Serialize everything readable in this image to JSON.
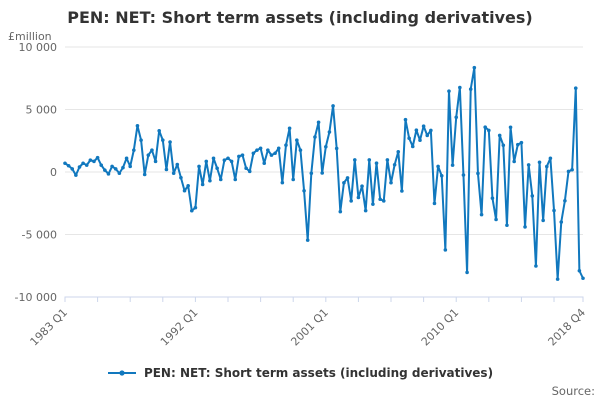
{
  "title": "PEN: NET: Short term assets (including derivatives)",
  "y_axis": {
    "unit_label": "£million",
    "min": -10000,
    "max": 10000,
    "ticks": [
      10000,
      5000,
      0,
      -5000,
      -10000
    ],
    "tick_labels": [
      "10 000",
      "5 000",
      "0",
      "-5 000",
      "-10 000"
    ]
  },
  "x_axis": {
    "labeled_ticks": [
      {
        "label": "1983 Q1",
        "index": 0
      },
      {
        "label": "1992 Q1",
        "index": 36
      },
      {
        "label": "2001 Q1",
        "index": 72
      },
      {
        "label": "2010 Q1",
        "index": 108
      },
      {
        "label": "2018 Q4",
        "index": 143
      }
    ],
    "tick_every": 9
  },
  "legend": {
    "label": "PEN: NET: Short term assets (including derivatives)"
  },
  "source_label": "Source:",
  "colors": {
    "series": "#1178be",
    "grid": "#e6e6e6",
    "axis": "#ccd6eb",
    "text_muted": "#666666",
    "text_strong": "#333333"
  },
  "chart_data": {
    "type": "line",
    "title": "PEN: NET: Short term assets (including derivatives)",
    "ylabel": "£million",
    "ylim": [
      -10000,
      10000
    ],
    "grid": "horizontal-only",
    "legend_position": "bottom",
    "x_start": "1983 Q1",
    "x_end": "2018 Q4",
    "frequency": "quarterly",
    "series": [
      {
        "name": "PEN: NET: Short term assets (including derivatives)",
        "values": [
          700,
          500,
          250,
          -250,
          400,
          700,
          550,
          950,
          850,
          1150,
          550,
          150,
          -150,
          450,
          250,
          -100,
          350,
          1100,
          450,
          1750,
          3700,
          2550,
          -200,
          1350,
          1750,
          850,
          3300,
          2550,
          200,
          2400,
          -100,
          600,
          -450,
          -1500,
          -1100,
          -3100,
          -2850,
          450,
          -1000,
          850,
          -700,
          1100,
          300,
          -600,
          950,
          1100,
          850,
          -600,
          1250,
          1350,
          300,
          50,
          1500,
          1750,
          1900,
          700,
          1750,
          1350,
          1500,
          1900,
          -850,
          2150,
          3500,
          -600,
          2550,
          1750,
          -1500,
          -5450,
          -100,
          2800,
          3980,
          -80,
          2020,
          3200,
          5290,
          1890,
          -3170,
          -860,
          -470,
          -2310,
          970,
          -2040,
          -1130,
          -3090,
          970,
          -2570,
          710,
          -2180,
          -2310,
          970,
          -860,
          580,
          1620,
          -1520,
          4190,
          2700,
          2040,
          3350,
          2540,
          3670,
          2930,
          3330,
          -2510,
          450,
          -300,
          -6230,
          6470,
          550,
          4380,
          6760,
          -240,
          -8030,
          6630,
          8350,
          -110,
          -3410,
          3590,
          3330,
          -2090,
          -3800,
          2930,
          2140,
          -4260,
          3580,
          840,
          2190,
          2350,
          -4390,
          570,
          -1910,
          -7520,
          780,
          -3870,
          440,
          1100,
          -3080,
          -8570,
          -4000,
          -2300,
          50,
          180,
          6710,
          -7900,
          -8500
        ]
      }
    ]
  }
}
